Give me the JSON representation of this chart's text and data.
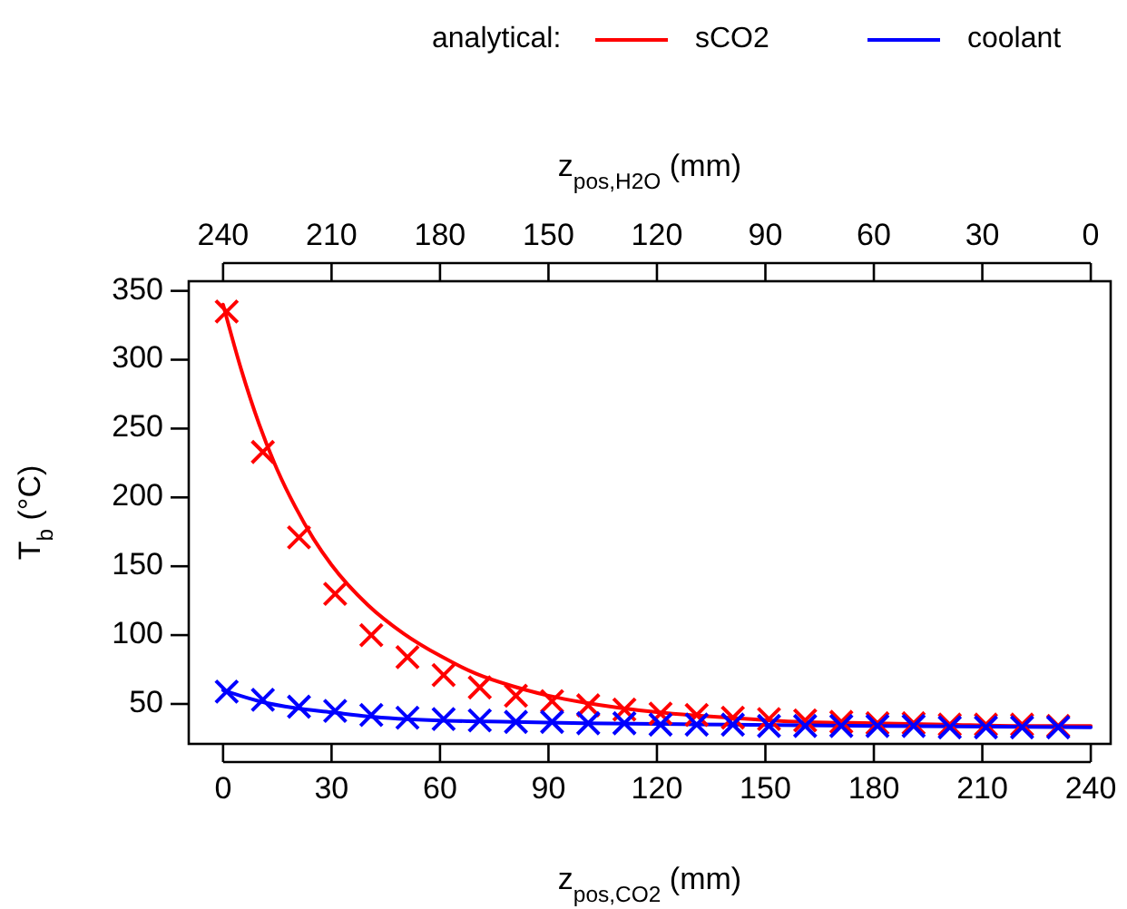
{
  "chart_data": {
    "type": "line",
    "xlabel": "z$_{pos,CO2}$ (mm)",
    "x2label": "z$_{pos,H2O}$ (mm)",
    "ylabel": "T$_{b}$ (°C)",
    "legend_title": "analytical:",
    "legend": "top",
    "xlim": [
      -9.5,
      245.5
    ],
    "xticks": [
      0,
      30,
      60,
      90,
      120,
      150,
      180,
      210,
      240
    ],
    "x2lim": [
      249.5,
      -5.5
    ],
    "x2ticks": [
      240,
      210,
      180,
      150,
      120,
      90,
      60,
      30,
      0
    ],
    "ylim": [
      21,
      357
    ],
    "yticks": [
      50,
      100,
      150,
      200,
      250,
      300,
      350
    ],
    "grid": false,
    "series": [
      {
        "name": "sCO2",
        "color": "#ff0000",
        "x": [
          0,
          5,
          10,
          15,
          20,
          25,
          30,
          40,
          50,
          60,
          70,
          80,
          90,
          100,
          120,
          140,
          160,
          180,
          200,
          220,
          240
        ],
        "values": [
          340,
          293,
          253,
          220,
          193,
          170,
          151,
          122,
          101,
          85,
          72,
          63,
          56,
          51,
          44,
          40,
          37,
          36,
          35,
          34,
          34
        ]
      },
      {
        "name": "coolant",
        "color": "#0000ff",
        "x": [
          0,
          10,
          20,
          30,
          40,
          60,
          80,
          100,
          140,
          180,
          240
        ],
        "values": [
          60,
          52,
          47,
          44,
          41,
          38,
          37,
          36,
          35,
          34,
          33
        ]
      },
      {
        "type": "scatter",
        "marker": "cross",
        "color": "#ff0000",
        "x": [
          1,
          11,
          21,
          31,
          41,
          51,
          61,
          71,
          81,
          91,
          101,
          111,
          121,
          131,
          141,
          151,
          161,
          171,
          181,
          191,
          201,
          211,
          221,
          231
        ],
        "values": [
          335,
          233,
          171,
          130,
          100,
          84,
          71,
          62,
          56,
          52,
          49,
          46,
          43,
          42,
          40,
          39,
          38,
          37,
          36,
          36,
          35,
          35,
          35,
          34
        ]
      },
      {
        "type": "scatter",
        "marker": "cross",
        "color": "#0000ff",
        "x": [
          1,
          11,
          21,
          31,
          41,
          51,
          61,
          71,
          81,
          91,
          101,
          111,
          121,
          131,
          141,
          151,
          161,
          171,
          181,
          191,
          201,
          211,
          221,
          231
        ],
        "values": [
          59,
          53,
          48,
          45,
          42,
          40,
          39,
          38,
          37,
          37,
          36,
          36,
          35,
          35,
          35,
          34,
          34,
          34,
          34,
          34,
          33,
          33,
          33,
          33
        ]
      }
    ]
  }
}
